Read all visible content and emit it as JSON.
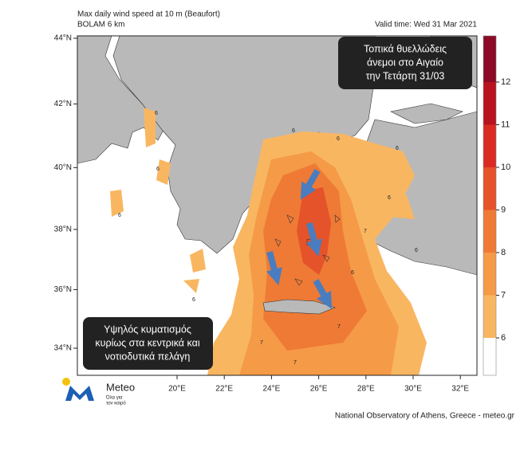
{
  "header": {
    "title": "Max daily wind speed at 10 m (Beaufort)",
    "model": "BOLAM 6 km",
    "valid_time": "Valid time: Wed 31 Mar 2021"
  },
  "map": {
    "lat_ticks": [
      {
        "value": 44,
        "label": "44°N"
      },
      {
        "value": 42,
        "label": "42°N"
      },
      {
        "value": 40,
        "label": "40°N"
      },
      {
        "value": 38,
        "label": "38°N"
      },
      {
        "value": 36,
        "label": "36°N"
      },
      {
        "value": 34,
        "label": "34°N"
      }
    ],
    "lon_ticks": [
      {
        "value": 20,
        "label": "20°E"
      },
      {
        "value": 22,
        "label": "22°E"
      },
      {
        "value": 24,
        "label": "24°E"
      },
      {
        "value": 26,
        "label": "26°E"
      },
      {
        "value": 28,
        "label": "28°E"
      },
      {
        "value": 30,
        "label": "30°E"
      },
      {
        "value": 32,
        "label": "32°E"
      }
    ],
    "contour_labels": [
      6,
      6,
      6,
      6,
      6,
      6,
      6,
      6,
      6,
      6,
      7,
      7,
      7,
      7
    ]
  },
  "colorbar": {
    "levels": [
      6,
      7,
      8,
      9,
      10,
      11,
      12
    ],
    "colors": [
      "#ffffff",
      "#f9b661",
      "#f59a46",
      "#ee7a36",
      "#e5532a",
      "#d92b23",
      "#b8141f",
      "#8c0a26"
    ]
  },
  "annotations": [
    {
      "lines": [
        "Τοπικά θυελλώδεις",
        "άνεμοι στο Αιγαίο",
        "την Τετάρτη 31/03"
      ]
    },
    {
      "lines": [
        "Υψηλός κυματισμός",
        "κυρίως στα κεντρικά και",
        "νοτιοδυτικά πελάγη"
      ]
    }
  ],
  "logo": {
    "name": "Meteo",
    "tagline": [
      "Όλα για",
      "τον καιρό"
    ]
  },
  "footer": "National Observatory of Athens, Greece - meteo.gr"
}
